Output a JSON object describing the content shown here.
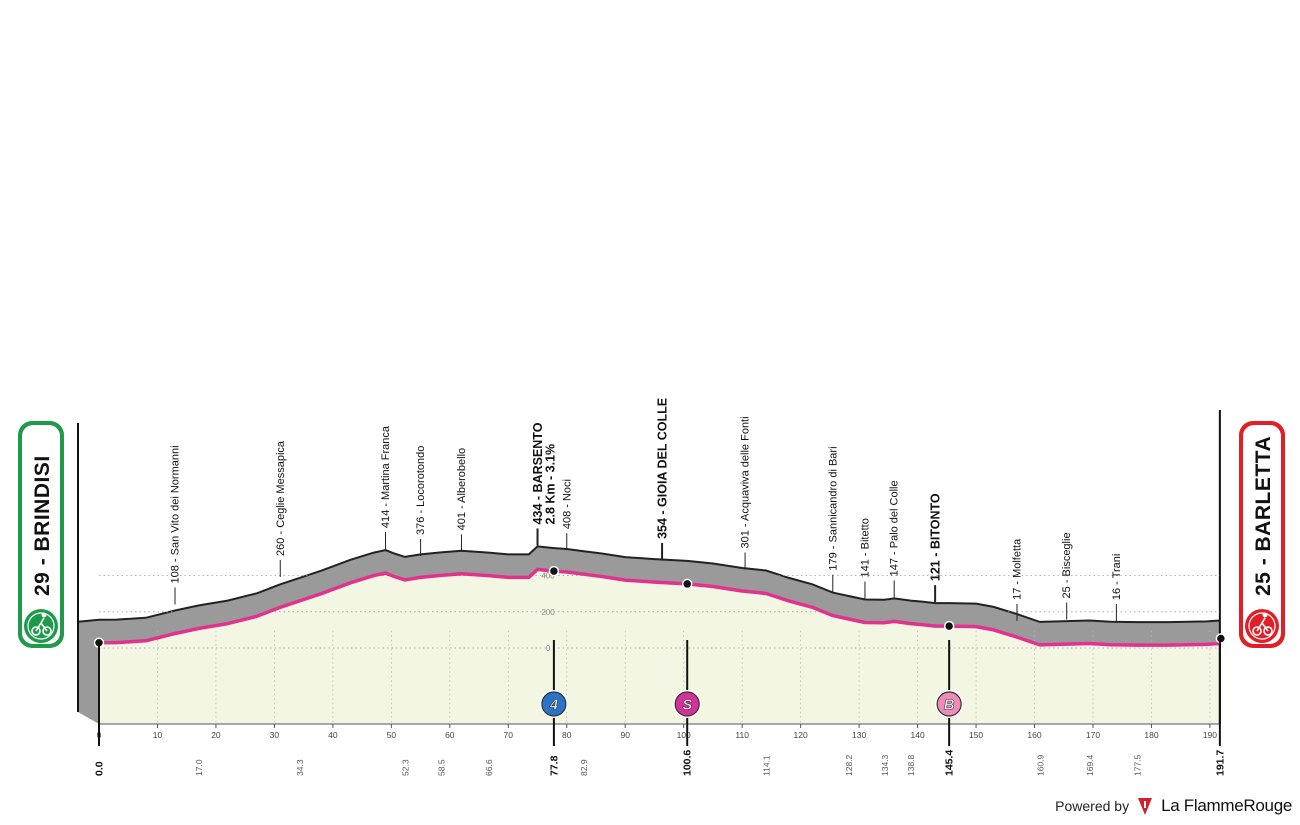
{
  "chart_data": {
    "type": "area",
    "start": {
      "name": "BRINDISI",
      "altitude": "29",
      "label": "29 - BRINDISI",
      "color": "#1f9a4a",
      "icon": "cyclist-icon"
    },
    "finish": {
      "name": "BARLETTA",
      "altitude": "25",
      "label": "25 - BARLETTA",
      "color": "#e21f26",
      "icon": "finish-icon"
    },
    "x_axis": {
      "unit": "km",
      "range": [
        0,
        191.7
      ],
      "ticks": [
        0,
        10,
        20,
        30,
        40,
        50,
        60,
        70,
        80,
        90,
        100,
        110,
        120,
        130,
        140,
        150,
        160,
        170,
        180,
        190
      ],
      "tick_labels": [
        "0",
        "10",
        "20",
        "30",
        "40",
        "50",
        "60",
        "70",
        "80",
        "90",
        "100",
        "110",
        "120",
        "130",
        "140",
        "150",
        "160",
        "170",
        "180",
        "190"
      ]
    },
    "y_axis": {
      "unit": "m",
      "ticks": [
        0,
        200,
        400
      ],
      "tick_labels": [
        "0",
        "200",
        "400"
      ]
    },
    "profile": {
      "x": [
        0,
        3,
        8,
        13,
        17,
        22,
        27,
        31,
        34.3,
        38,
        43,
        47,
        49,
        50.5,
        52.3,
        55,
        58.5,
        62,
        66.6,
        70,
        73.5,
        75,
        77.8,
        80,
        82.9,
        86,
        90,
        95,
        100.6,
        105,
        110,
        114.1,
        118,
        122,
        125.5,
        128.2,
        131,
        134.3,
        136,
        138.8,
        141,
        143,
        145.4,
        150,
        153,
        157,
        160.9,
        164,
        169.4,
        173,
        177.5,
        183,
        189.5,
        191.7
      ],
      "y": [
        29,
        30,
        40,
        80,
        108,
        135,
        175,
        225,
        260,
        300,
        360,
        400,
        414,
        395,
        376,
        390,
        401,
        410,
        400,
        390,
        390,
        434,
        425,
        420,
        408,
        395,
        375,
        364,
        354,
        340,
        315,
        301,
        260,
        225,
        179,
        160,
        141,
        140,
        147,
        135,
        128,
        121,
        121,
        118,
        100,
        60,
        17,
        20,
        25,
        18,
        16,
        16,
        20,
        25
      ]
    },
    "km_markers": [
      {
        "km": "0.0",
        "key": true
      },
      {
        "km": "17.0"
      },
      {
        "km": "34.3"
      },
      {
        "km": "52.3"
      },
      {
        "km": "58.5"
      },
      {
        "km": "66.6"
      },
      {
        "km": "77.8",
        "key": true
      },
      {
        "km": "82.9"
      },
      {
        "km": "100.6",
        "key": true
      },
      {
        "km": "114.1"
      },
      {
        "km": "128.2"
      },
      {
        "km": "134.3"
      },
      {
        "km": "138.8"
      },
      {
        "km": "145.4",
        "key": true
      },
      {
        "km": "160.9"
      },
      {
        "km": "169.4"
      },
      {
        "km": "177.5"
      },
      {
        "km": "191.7",
        "key": true
      }
    ],
    "places": [
      {
        "label": "108 - San Vito dei Normanni",
        "km": 13,
        "alt": 108,
        "bold": false
      },
      {
        "label": "260 - Ceglie Messapica",
        "km": 31,
        "alt": 260,
        "bold": false
      },
      {
        "label": "414 - Martina Franca",
        "km": 49,
        "alt": 414,
        "bold": false
      },
      {
        "label": "376 - Locorotondo",
        "km": 55,
        "alt": 376,
        "bold": false
      },
      {
        "label": "401 - Alberobello",
        "km": 62,
        "alt": 401,
        "bold": false
      },
      {
        "label": "434 - BARSENTO",
        "km": 75,
        "alt": 434,
        "bold": true
      },
      {
        "label": "408 - Noci",
        "km": 80,
        "alt": 408,
        "bold": false
      },
      {
        "label": "354 - GIOIA DEL COLLE",
        "km": 96.3,
        "alt": 354,
        "bold": true
      },
      {
        "label": "301 - Acquaviva delle Fonti",
        "km": 110.5,
        "alt": 301,
        "bold": false
      },
      {
        "label": "179 - Sannicandro di Bari",
        "km": 125.5,
        "alt": 179,
        "bold": false
      },
      {
        "label": "141 - Bitetto",
        "km": 131,
        "alt": 141,
        "bold": false
      },
      {
        "label": "147 - Palo del Colle",
        "km": 136,
        "alt": 147,
        "bold": false
      },
      {
        "label": "121 - BITONTO",
        "km": 143,
        "alt": 121,
        "bold": true
      },
      {
        "label": "17 - Molfetta",
        "km": 157,
        "alt": 17,
        "bold": false
      },
      {
        "label": "25 - Bisceglie",
        "km": 165.5,
        "alt": 25,
        "bold": false
      },
      {
        "label": "16 - Trani",
        "km": 174,
        "alt": 16,
        "bold": false
      }
    ],
    "climb": {
      "label": "2.8 Km - 3.1%"
    },
    "badges": [
      {
        "letter": "4",
        "km": 77.8,
        "color": "#2874c8",
        "icon": "climb-category-4-icon"
      },
      {
        "letter": "S",
        "km": 100.6,
        "color": "#d6309a",
        "icon": "sprint-icon"
      },
      {
        "letter": "B",
        "km": 145.4,
        "color": "#f08ab8",
        "icon": "bonus-icon"
      }
    ],
    "colors": {
      "terrain": "#9a9a9a",
      "terrain_edge": "#222222",
      "base_fill": "#f4f6e4",
      "route_line": "#e0338e",
      "grid": "#9a9a9a"
    }
  },
  "footer": {
    "powered_by": "Powered by",
    "brand": "La FlammeRouge",
    "brand_icon": "flamme-rouge-icon"
  }
}
